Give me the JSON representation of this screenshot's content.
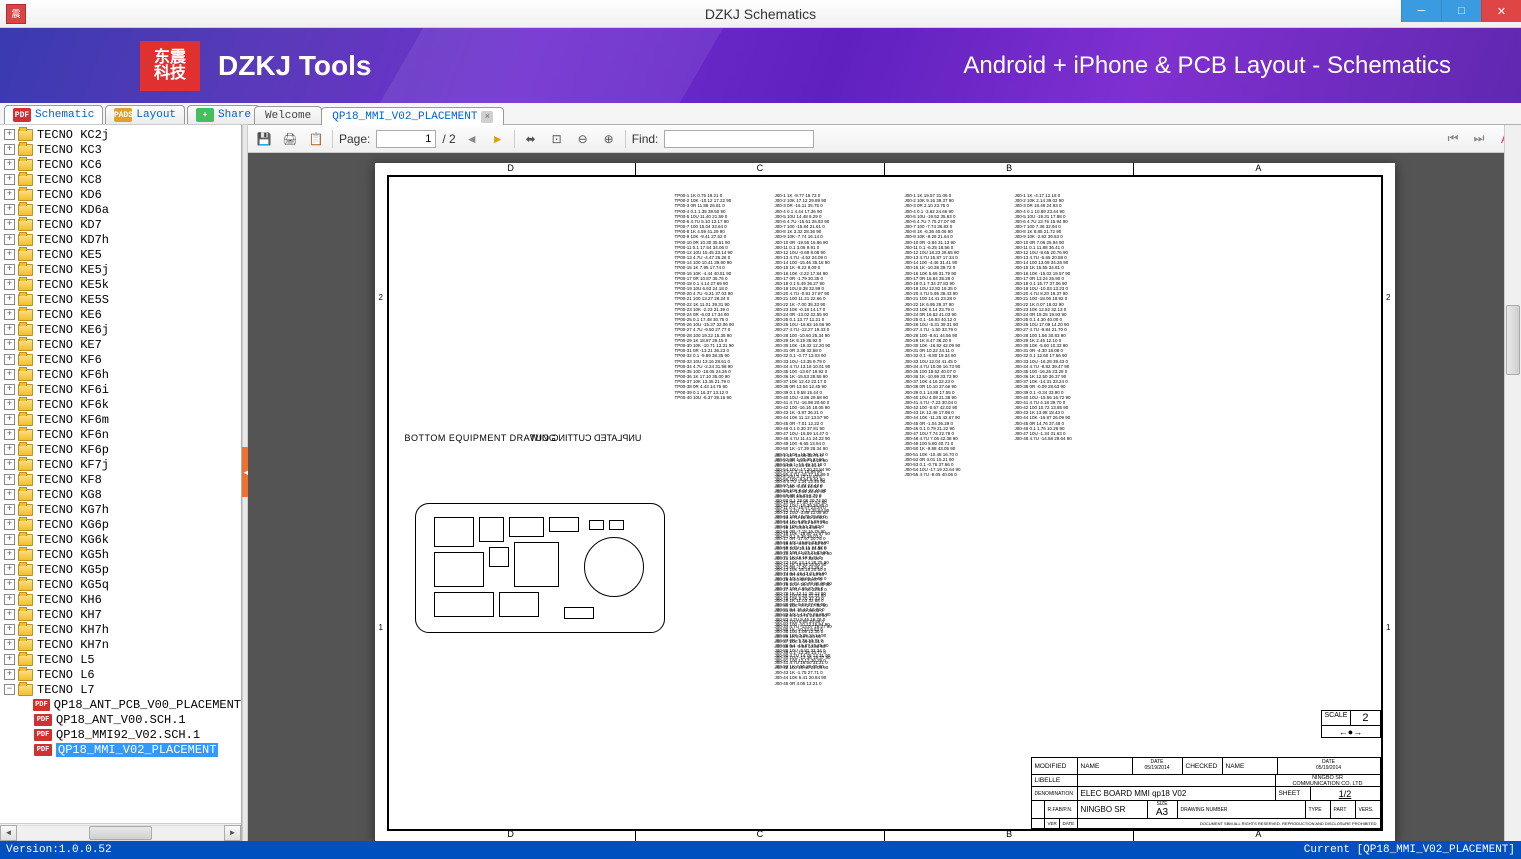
{
  "window": {
    "title": "DZKJ Schematics",
    "icon_text": "震"
  },
  "banner": {
    "logo_top": "东震",
    "logo_bottom": "科技",
    "tools": "DZKJ Tools",
    "tagline": "Android + iPhone & PCB Layout - Schematics"
  },
  "mode_tabs": [
    {
      "icon": "PDF",
      "icon_class": "pdf-ic",
      "label": "Schematic",
      "active": true
    },
    {
      "icon": "PADS",
      "icon_class": "pads-ic",
      "label": "Layout",
      "active": false
    },
    {
      "icon": "+",
      "icon_class": "share-ic",
      "label": "Share",
      "active": false
    }
  ],
  "doc_tabs": [
    {
      "label": "Welcome",
      "active": false,
      "closable": false
    },
    {
      "label": "QP18_MMI_V02_PLACEMENT",
      "active": true,
      "closable": true
    }
  ],
  "toolbar": {
    "page_label": "Page:",
    "page_current": "1",
    "page_total": "/ 2",
    "find_label": "Find:"
  },
  "tree": {
    "folders": [
      "TECNO KC2j",
      "TECNO KC3",
      "TECNO KC6",
      "TECNO KC8",
      "TECNO KD6",
      "TECNO KD6a",
      "TECNO KD7",
      "TECNO KD7h",
      "TECNO KE5",
      "TECNO KE5j",
      "TECNO KE5k",
      "TECNO KE5S",
      "TECNO KE6",
      "TECNO KE6j",
      "TECNO KE7",
      "TECNO KF6",
      "TECNO KF6h",
      "TECNO KF6i",
      "TECNO KF6k",
      "TECNO KF6m",
      "TECNO KF6n",
      "TECNO KF6p",
      "TECNO KF7j",
      "TECNO KF8",
      "TECNO KG8",
      "TECNO KG7h",
      "TECNO KG6p",
      "TECNO KG6k",
      "TECNO KG5h",
      "TECNO KG5p",
      "TECNO KG5q",
      "TECNO KH6",
      "TECNO KH7",
      "TECNO KH7h",
      "TECNO KH7n",
      "TECNO L5",
      "TECNO L6"
    ],
    "expanded_folder": "TECNO L7",
    "files": [
      "QP18_ANT_PCB_V00_PLACEMENT",
      "QP18_ANT_V00.SCH.1",
      "QP18_MMI92_V02.SCH.1",
      "QP18_MMI_V02_PLACEMENT"
    ],
    "selected_file": "QP18_MMI_V02_PLACEMENT"
  },
  "page": {
    "ruler_labels": [
      "D",
      "C",
      "B",
      "A"
    ],
    "side_labels": [
      "2",
      "1"
    ],
    "drawing_label": "BOTTOM EQUIPMENT DRAWING",
    "drawing_label_mirror": "UNPLATED CUTTING OUT",
    "scale_label": "SCALE",
    "scale_value": "2",
    "titleblock": {
      "modified": "MODIFIED",
      "name": "NAME",
      "date": "DATE",
      "date_val": "05/19/2014",
      "checked": "CHECKED",
      "libelle": "LIBELLE",
      "denomination": "DENOMINATION",
      "denom_val": "ELEC BOARD MMI qp18  V02",
      "company1": "NINGBO SR",
      "company2": "COMMUNICATION CO. LTD",
      "sheet": "SHEET",
      "sheet_val": "1/2",
      "rfab": "R.FAB/P.N.",
      "author": "NINGBO SR",
      "size": "SIZE",
      "size_val": "A3",
      "drawing_no": "DRAWING NUMBER",
      "type": "TYPE",
      "part": "PART",
      "vers": "VERS.",
      "ver": "VER",
      "disclaimer": "DOCUMENT SBM ALL RIGHTS RESERVED. REPRODUCTION AND DISCLOSURE PROHIBITED"
    }
  },
  "statusbar": {
    "version": "Version:1.0.0.52",
    "current": "Current [QP18_MMI_V02_PLACEMENT]"
  },
  "colors": {
    "accent_blue": "#0050c0",
    "viewer_bg": "#545454",
    "banner_purple": "#6020c0",
    "close_red": "#e04545"
  }
}
